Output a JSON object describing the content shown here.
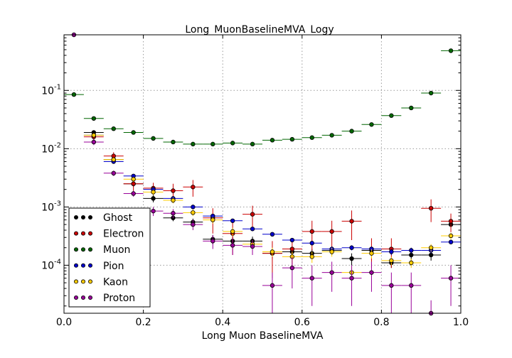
{
  "chart_data": {
    "type": "scatter",
    "title": "Long_MuonBaselineMVA_Logy",
    "xlabel": "Long Muon BaselineMVA",
    "ylabel": "",
    "xlim": [
      0,
      1
    ],
    "ylim": [
      1.5e-05,
      0.9
    ],
    "yscale": "log",
    "grid": true,
    "legend_position": "lower-left",
    "x_bin_width": 0.05,
    "x_ticks": [
      {
        "value": 0.0,
        "label": "0.0"
      },
      {
        "value": 0.2,
        "label": "0.2"
      },
      {
        "value": 0.4,
        "label": "0.4"
      },
      {
        "value": 0.6,
        "label": "0.6"
      },
      {
        "value": 0.8,
        "label": "0.8"
      },
      {
        "value": 1.0,
        "label": "1.0"
      }
    ],
    "y_ticks": [
      {
        "value": 0.1,
        "base": "10",
        "exp": "-1"
      },
      {
        "value": 0.01,
        "base": "10",
        "exp": "-2"
      },
      {
        "value": 0.001,
        "base": "10",
        "exp": "-3"
      },
      {
        "value": 0.0001,
        "base": "10",
        "exp": "-4"
      }
    ],
    "x": [
      0.025,
      0.075,
      0.125,
      0.175,
      0.225,
      0.275,
      0.325,
      0.375,
      0.425,
      0.475,
      0.525,
      0.575,
      0.625,
      0.675,
      0.725,
      0.775,
      0.825,
      0.875,
      0.925,
      0.975
    ],
    "series": [
      {
        "name": "Ghost",
        "color": "#000000",
        "values": [
          null,
          0.019,
          0.0065,
          0.0025,
          0.0014,
          0.00065,
          0.00055,
          0.00028,
          0.00026,
          0.00026,
          0.00016,
          0.00017,
          0.00016,
          0.00018,
          0.00013,
          0.00018,
          0.00011,
          0.00015,
          0.00015,
          0.0005
        ],
        "errors": [
          null,
          0.0015,
          0.0006,
          0.0003,
          0.0002,
          8e-05,
          8e-05,
          5e-05,
          5e-05,
          5e-05,
          3e-05,
          3e-05,
          3e-05,
          3e-05,
          3e-05,
          3e-05,
          2e-05,
          3e-05,
          3e-05,
          6e-05
        ]
      },
      {
        "name": "Electron",
        "color": "#cc0000",
        "values": [
          null,
          0.016,
          0.0075,
          0.0025,
          0.0021,
          0.0019,
          0.0022,
          0.00065,
          0.00035,
          0.00075,
          0.00016,
          0.00019,
          0.00038,
          0.00038,
          0.00057,
          0.00019,
          0.00019,
          null,
          0.00095,
          0.00057
        ],
        "errors": [
          null,
          0.002,
          0.0012,
          0.0006,
          0.0005,
          0.0006,
          0.0007,
          0.0003,
          0.0002,
          0.0003,
          0.0001,
          0.0001,
          0.0002,
          0.0002,
          0.0003,
          0.0001,
          0.0001,
          null,
          0.0004,
          0.0002
        ]
      },
      {
        "name": "Muon",
        "color": "#006600",
        "values": [
          0.085,
          0.033,
          0.022,
          0.019,
          0.015,
          0.013,
          0.012,
          0.012,
          0.0125,
          0.012,
          0.014,
          0.0145,
          0.0155,
          0.017,
          0.02,
          0.026,
          0.037,
          0.05,
          0.09,
          0.48
        ],
        "errors": [
          0.002,
          0.001,
          0.0007,
          0.0006,
          0.0005,
          0.0004,
          0.0004,
          0.0004,
          0.0004,
          0.0004,
          0.0004,
          0.0004,
          0.0004,
          0.0005,
          0.0005,
          0.0006,
          0.0008,
          0.001,
          0.002,
          0.005
        ]
      },
      {
        "name": "Pion",
        "color": "#0000cc",
        "values": [
          null,
          0.017,
          0.006,
          0.0034,
          0.002,
          0.0014,
          0.001,
          0.0007,
          0.00058,
          0.00042,
          0.00034,
          0.00027,
          0.00024,
          0.00019,
          0.0002,
          0.00019,
          0.00017,
          0.00018,
          0.00018,
          0.00025
        ],
        "errors": [
          null,
          0.001,
          0.0003,
          0.0002,
          0.00012,
          0.0001,
          7e-05,
          5e-05,
          4e-05,
          3e-05,
          3e-05,
          2e-05,
          2e-05,
          2e-05,
          2e-05,
          2e-05,
          2e-05,
          2e-05,
          2e-05,
          2e-05
        ]
      },
      {
        "name": "Kaon",
        "color": "#ffcc00",
        "values": [
          null,
          0.017,
          0.0065,
          0.003,
          0.0018,
          0.0013,
          0.0008,
          0.0006,
          0.00038,
          0.00023,
          0.00017,
          0.00014,
          0.00014,
          0.00017,
          7.5e-05,
          0.00016,
          0.00012,
          0.00011,
          0.0002,
          0.00032
        ],
        "errors": [
          null,
          0.0012,
          0.0005,
          0.0003,
          0.0002,
          0.00015,
          0.0001,
          8e-05,
          6e-05,
          4e-05,
          3e-05,
          3e-05,
          3e-05,
          3e-05,
          2e-05,
          3e-05,
          2e-05,
          2e-05,
          3e-05,
          4e-05
        ]
      },
      {
        "name": "Proton",
        "color": "#990099",
        "values": [
          0.9,
          0.013,
          0.0038,
          0.0017,
          0.00085,
          0.00078,
          0.0005,
          0.00026,
          0.00022,
          0.00021,
          4.5e-05,
          9e-05,
          6e-05,
          7.5e-05,
          6e-05,
          7.5e-05,
          4.5e-05,
          4.5e-05,
          1.5e-05,
          6e-05
        ],
        "errors": [
          0.05,
          0.0015,
          0.0004,
          0.0002,
          0.00015,
          0.00014,
          0.0001,
          7e-05,
          7e-05,
          6e-05,
          3e-05,
          5e-05,
          4e-05,
          4e-05,
          4e-05,
          4e-05,
          3e-05,
          3e-05,
          1e-05,
          4e-05
        ]
      }
    ]
  }
}
